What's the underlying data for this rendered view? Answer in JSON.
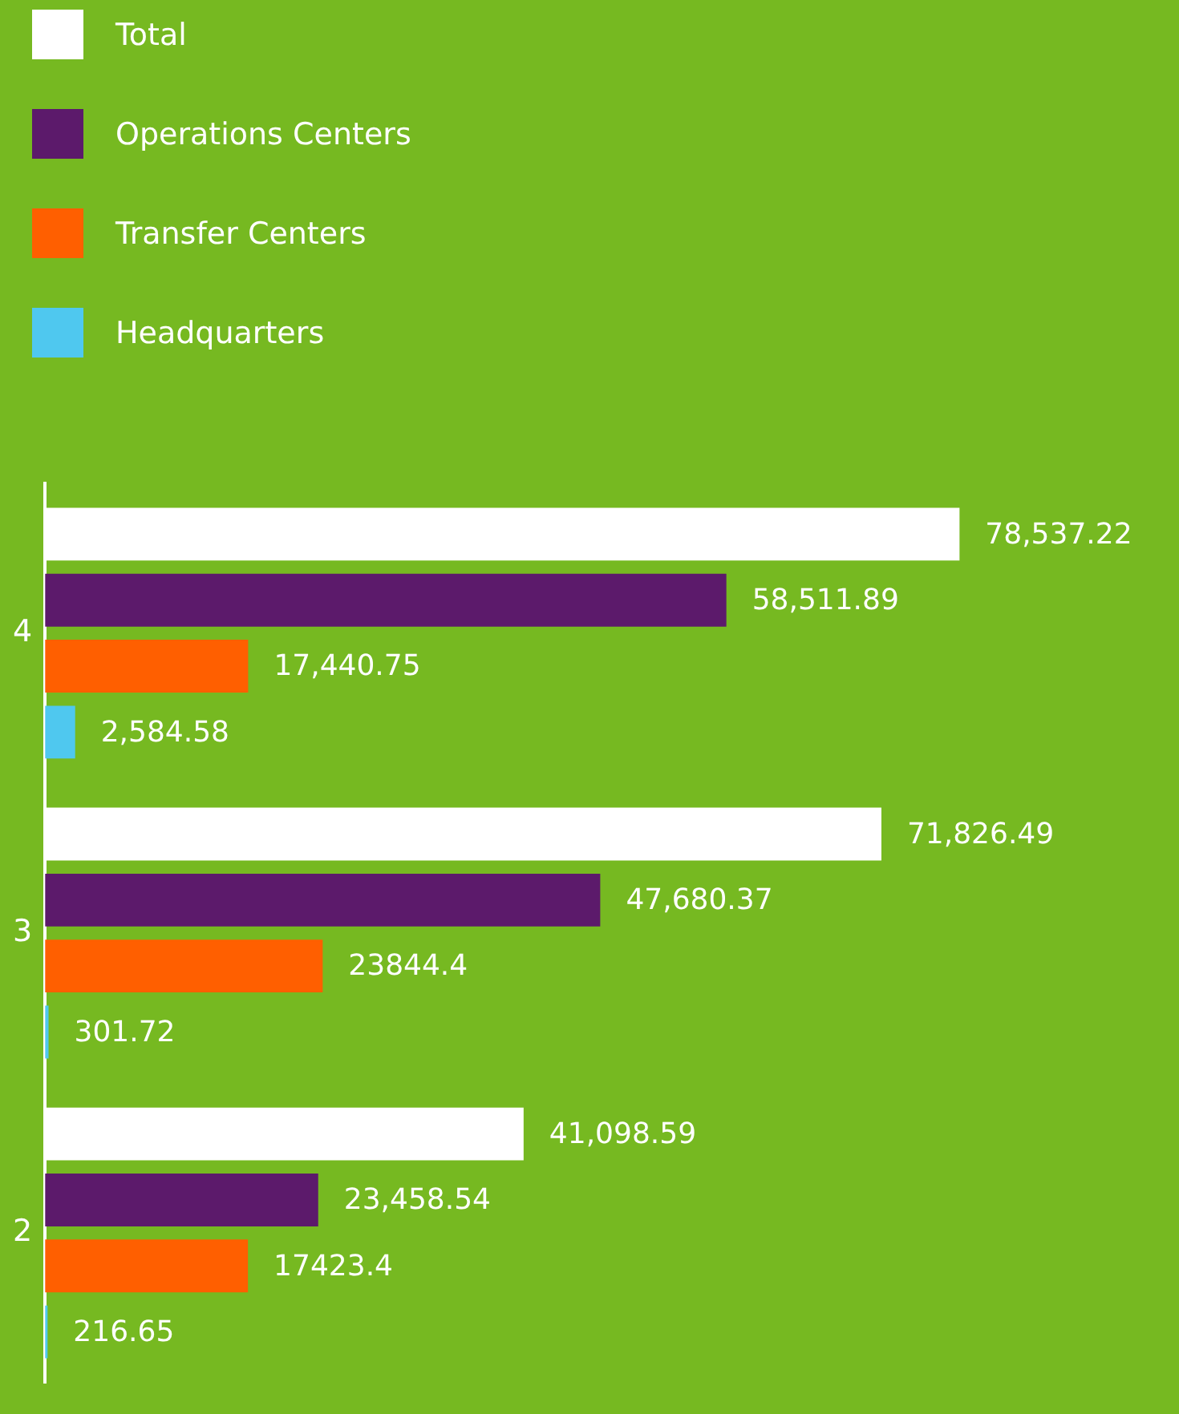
{
  "chart_data": {
    "type": "bar",
    "orientation": "horizontal",
    "categories": [
      "4",
      "3",
      "2"
    ],
    "series": [
      {
        "name": "Total",
        "color": "#ffffff",
        "values": [
          78537.22,
          71826.49,
          41098.59
        ],
        "value_labels": [
          "78,537.22",
          "71,826.49",
          "41,098.59"
        ]
      },
      {
        "name": "Operations Centers",
        "color": "#5c1a6b",
        "values": [
          58511.89,
          47680.37,
          23458.54
        ],
        "value_labels": [
          "58,511.89",
          "47,680.37",
          "23,458.54"
        ]
      },
      {
        "name": "Transfer Centers",
        "color": "#ff5f00",
        "values": [
          17440.75,
          23844.4,
          17423.4
        ],
        "value_labels": [
          "17,440.75",
          "23844.4",
          "17423.4"
        ]
      },
      {
        "name": "Headquarters",
        "color": "#4fc8ef",
        "values": [
          2584.58,
          301.72,
          216.65
        ],
        "value_labels": [
          "2,584.58",
          "301.72",
          "216.65"
        ]
      }
    ],
    "data_labels": true,
    "legend": "top left",
    "grid": false
  }
}
